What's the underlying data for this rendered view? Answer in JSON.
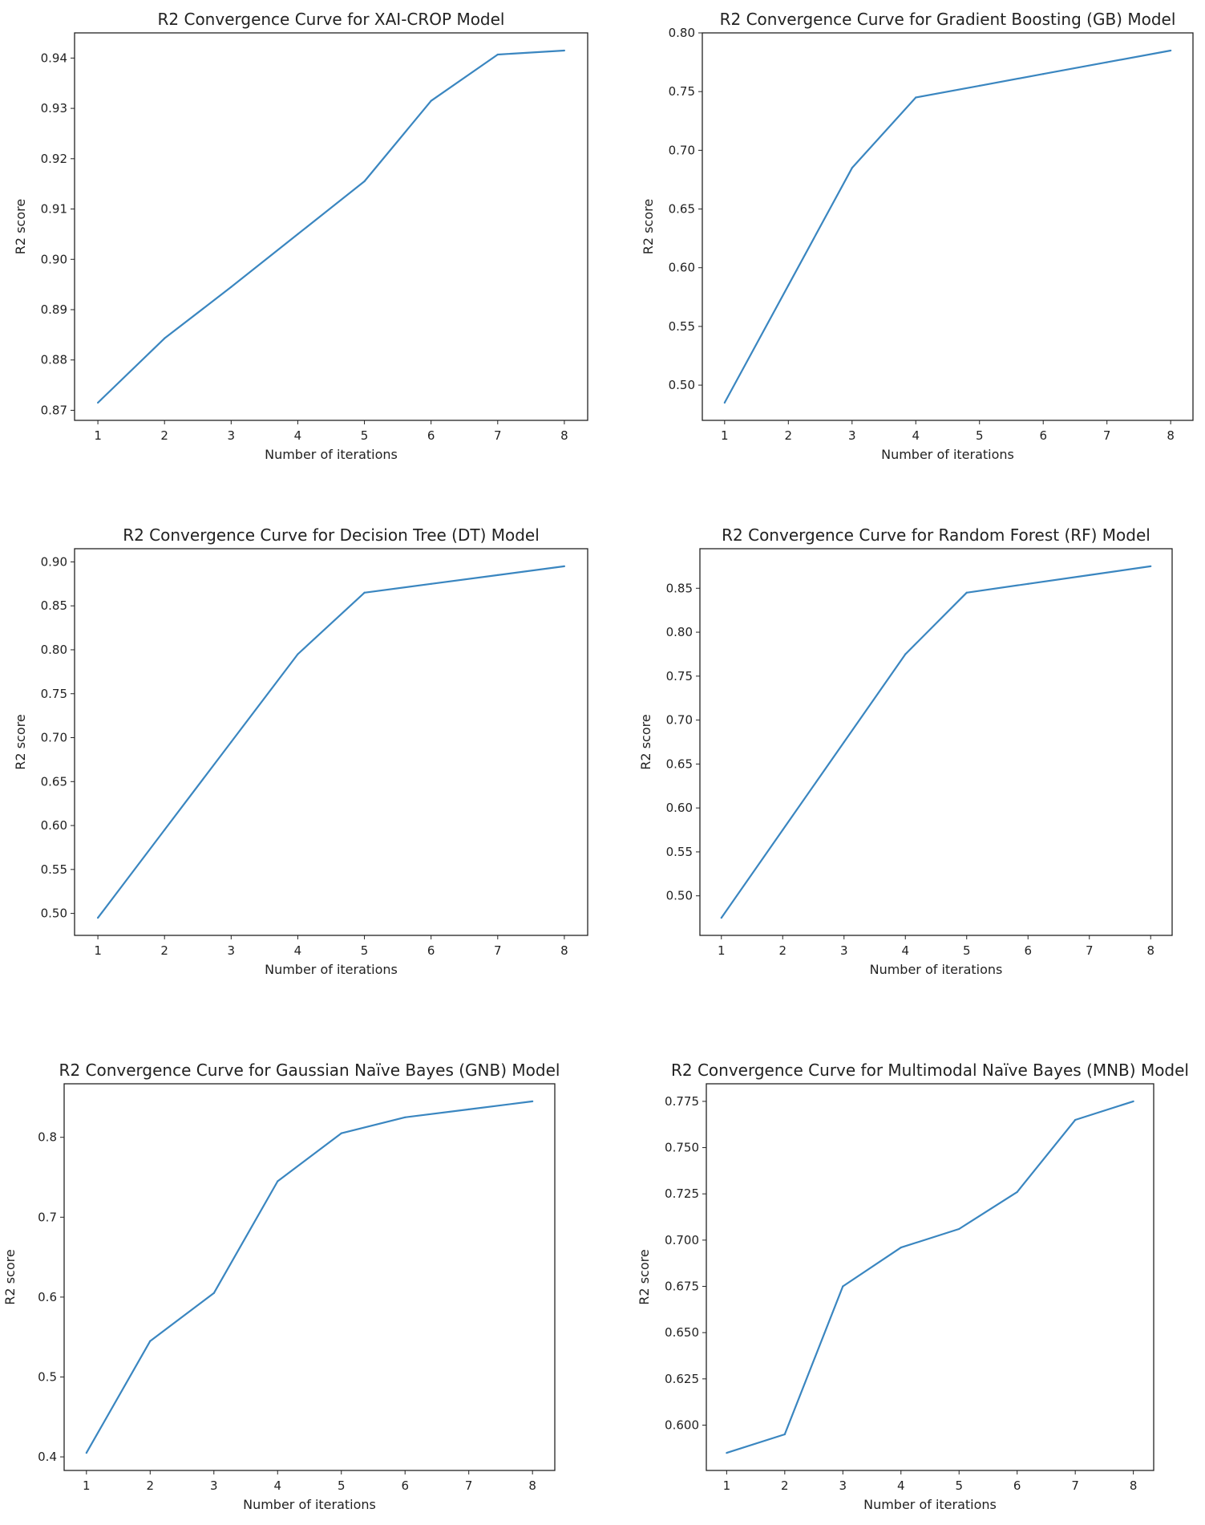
{
  "chart_data": [
    {
      "type": "line",
      "title": "R2 Convergence Curve for XAI-CROP Model",
      "xlabel": "Number of iterations",
      "ylabel": "R2 score",
      "x": [
        1,
        2,
        3,
        4,
        5,
        6,
        7,
        8
      ],
      "values": [
        0.8715,
        0.8843,
        0.8945,
        0.905,
        0.9155,
        0.9315,
        0.9407,
        0.9415
      ],
      "yticks": [
        "0.87",
        "0.88",
        "0.89",
        "0.90",
        "0.91",
        "0.92",
        "0.93",
        "0.94"
      ],
      "xticks": [
        "1",
        "2",
        "3",
        "4",
        "5",
        "6",
        "7",
        "8"
      ],
      "grid": false,
      "color": "#3a86c0"
    },
    {
      "type": "line",
      "title": "R2 Convergence Curve for Gradient Boosting (GB) Model",
      "xlabel": "Number of iterations",
      "ylabel": "R2 score",
      "x": [
        1,
        2,
        3,
        4,
        5,
        6,
        7,
        8
      ],
      "values": [
        0.485,
        0.585,
        0.685,
        0.745,
        0.755,
        0.765,
        0.775,
        0.785
      ],
      "yticks": [
        "0.50",
        "0.55",
        "0.60",
        "0.65",
        "0.70",
        "0.75",
        "0.80"
      ],
      "xticks": [
        "1",
        "2",
        "3",
        "4",
        "5",
        "6",
        "7",
        "8"
      ],
      "grid": false,
      "color": "#3a86c0"
    },
    {
      "type": "line",
      "title": "R2 Convergence Curve for Decision Tree (DT) Model",
      "xlabel": "Number of iterations",
      "ylabel": "R2 score",
      "x": [
        1,
        2,
        3,
        4,
        5,
        6,
        7,
        8
      ],
      "values": [
        0.495,
        0.595,
        0.695,
        0.795,
        0.865,
        0.875,
        0.885,
        0.895
      ],
      "yticks": [
        "0.50",
        "0.55",
        "0.60",
        "0.65",
        "0.70",
        "0.75",
        "0.80",
        "0.85",
        "0.90"
      ],
      "xticks": [
        "1",
        "2",
        "3",
        "4",
        "5",
        "6",
        "7",
        "8"
      ],
      "grid": false,
      "color": "#3a86c0"
    },
    {
      "type": "line",
      "title": "R2 Convergence Curve for Random Forest (RF) Model",
      "xlabel": "Number of iterations",
      "ylabel": "R2 score",
      "x": [
        1,
        2,
        3,
        4,
        5,
        6,
        7,
        8
      ],
      "values": [
        0.475,
        0.575,
        0.675,
        0.775,
        0.845,
        0.855,
        0.865,
        0.875
      ],
      "yticks": [
        "0.50",
        "0.55",
        "0.60",
        "0.65",
        "0.70",
        "0.75",
        "0.80",
        "0.85"
      ],
      "xticks": [
        "1",
        "2",
        "3",
        "4",
        "5",
        "6",
        "7",
        "8"
      ],
      "grid": false,
      "color": "#3a86c0"
    },
    {
      "type": "line",
      "title": "R2 Convergence Curve for Gaussian Naïve Bayes (GNB) Model",
      "xlabel": "Number of iterations",
      "ylabel": "R2 score",
      "x": [
        1,
        2,
        3,
        4,
        5,
        6,
        7,
        8
      ],
      "values": [
        0.405,
        0.545,
        0.605,
        0.745,
        0.805,
        0.825,
        0.835,
        0.845
      ],
      "yticks": [
        "0.4",
        "0.5",
        "0.6",
        "0.7",
        "0.8"
      ],
      "xticks": [
        "1",
        "2",
        "3",
        "4",
        "5",
        "6",
        "7",
        "8"
      ],
      "grid": false,
      "color": "#3a86c0"
    },
    {
      "type": "line",
      "title": "R2 Convergence Curve for Multimodal Naïve Bayes (MNB) Model",
      "xlabel": "Number of iterations",
      "ylabel": "R2 score",
      "x": [
        1,
        2,
        3,
        4,
        5,
        6,
        7,
        8
      ],
      "values": [
        0.585,
        0.595,
        0.675,
        0.696,
        0.706,
        0.726,
        0.765,
        0.775
      ],
      "yticks": [
        "0.600",
        "0.625",
        "0.650",
        "0.675",
        "0.700",
        "0.725",
        "0.750",
        "0.775"
      ],
      "xticks": [
        "1",
        "2",
        "3",
        "4",
        "5",
        "6",
        "7",
        "8"
      ],
      "grid": false,
      "color": "#3a86c0"
    }
  ]
}
